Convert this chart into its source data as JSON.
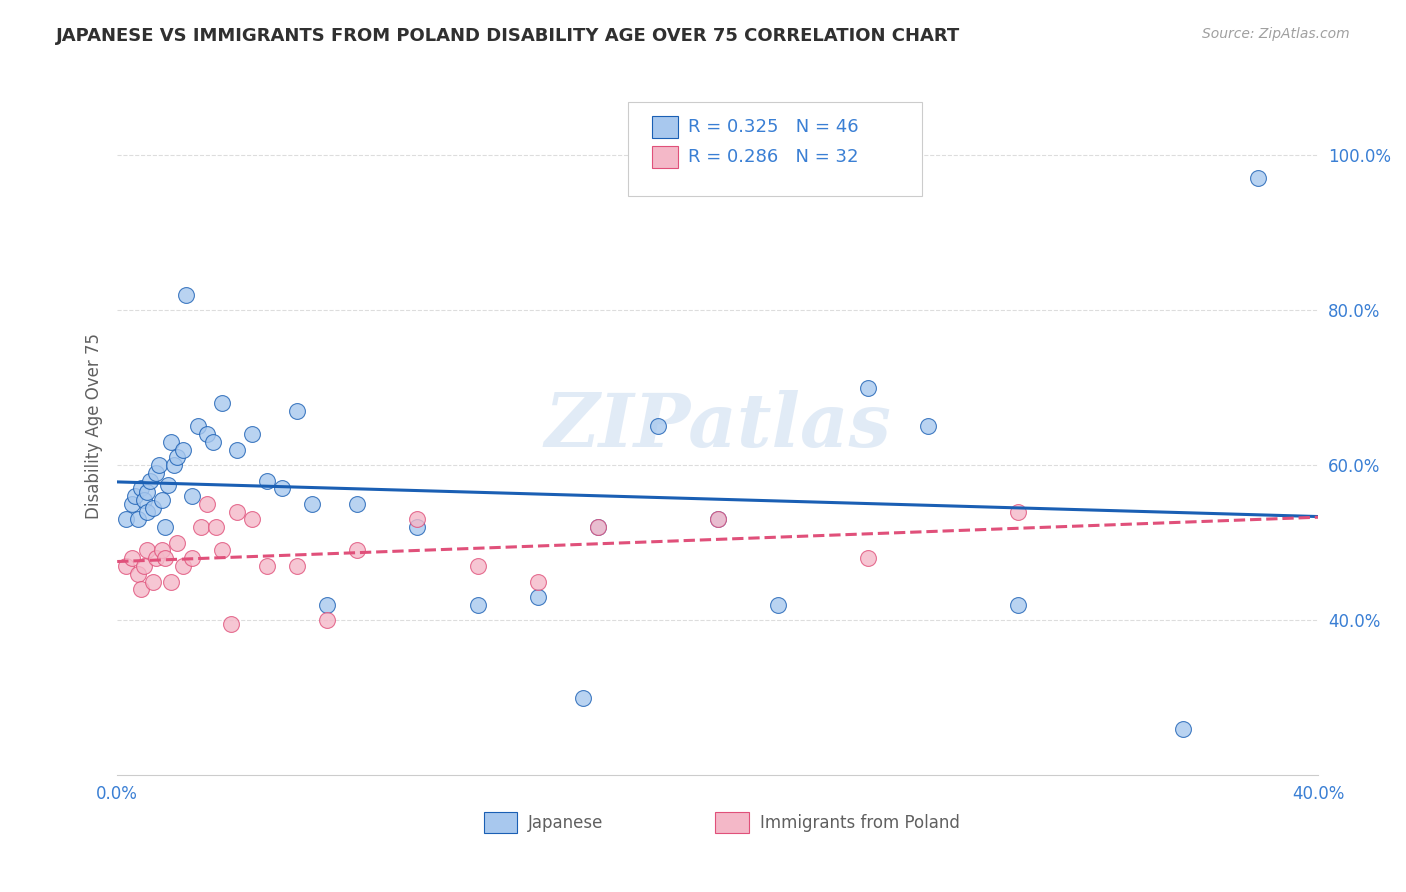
{
  "title": "JAPANESE VS IMMIGRANTS FROM POLAND DISABILITY AGE OVER 75 CORRELATION CHART",
  "source": "Source: ZipAtlas.com",
  "ylabel": "Disability Age Over 75",
  "watermark": "ZIPatlas",
  "legend": {
    "japanese": {
      "R": 0.325,
      "N": 46,
      "color": "#a8c8ee",
      "line_color": "#1a5fb4"
    },
    "poland": {
      "R": 0.286,
      "N": 32,
      "color": "#f4b8c8",
      "line_color": "#e0507a"
    }
  },
  "x_range": [
    0.0,
    0.4
  ],
  "y_range": [
    0.2,
    1.1
  ],
  "yticks": [
    0.4,
    0.6,
    0.8,
    1.0
  ],
  "ytick_labels": [
    "40.0%",
    "60.0%",
    "80.0%",
    "100.0%"
  ],
  "xticks": [
    0.0,
    0.1,
    0.2,
    0.3,
    0.4
  ],
  "xtick_labels": [
    "0.0%",
    "",
    "",
    "",
    "40.0%"
  ],
  "japanese_x": [
    0.003,
    0.005,
    0.006,
    0.007,
    0.008,
    0.009,
    0.01,
    0.01,
    0.011,
    0.012,
    0.013,
    0.014,
    0.015,
    0.016,
    0.017,
    0.018,
    0.019,
    0.02,
    0.022,
    0.023,
    0.025,
    0.027,
    0.03,
    0.032,
    0.035,
    0.04,
    0.045,
    0.05,
    0.055,
    0.06,
    0.065,
    0.07,
    0.08,
    0.1,
    0.12,
    0.14,
    0.155,
    0.16,
    0.18,
    0.2,
    0.22,
    0.25,
    0.27,
    0.3,
    0.355,
    0.38
  ],
  "japanese_y": [
    0.53,
    0.55,
    0.56,
    0.53,
    0.57,
    0.555,
    0.54,
    0.565,
    0.58,
    0.545,
    0.59,
    0.6,
    0.555,
    0.52,
    0.575,
    0.63,
    0.6,
    0.61,
    0.62,
    0.82,
    0.56,
    0.65,
    0.64,
    0.63,
    0.68,
    0.62,
    0.64,
    0.58,
    0.57,
    0.67,
    0.55,
    0.42,
    0.55,
    0.52,
    0.42,
    0.43,
    0.3,
    0.52,
    0.65,
    0.53,
    0.42,
    0.7,
    0.65,
    0.42,
    0.26,
    0.97
  ],
  "poland_x": [
    0.003,
    0.005,
    0.007,
    0.008,
    0.009,
    0.01,
    0.012,
    0.013,
    0.015,
    0.016,
    0.018,
    0.02,
    0.022,
    0.025,
    0.028,
    0.03,
    0.033,
    0.035,
    0.038,
    0.04,
    0.045,
    0.05,
    0.06,
    0.07,
    0.08,
    0.1,
    0.12,
    0.14,
    0.16,
    0.2,
    0.25,
    0.3
  ],
  "poland_y": [
    0.47,
    0.48,
    0.46,
    0.44,
    0.47,
    0.49,
    0.45,
    0.48,
    0.49,
    0.48,
    0.45,
    0.5,
    0.47,
    0.48,
    0.52,
    0.55,
    0.52,
    0.49,
    0.395,
    0.54,
    0.53,
    0.47,
    0.47,
    0.4,
    0.49,
    0.53,
    0.47,
    0.45,
    0.52,
    0.53,
    0.48,
    0.54
  ],
  "background_color": "#ffffff",
  "grid_color": "#dddddd",
  "title_color": "#303030",
  "axis_label_color": "#606060",
  "tick_label_color": "#3a7fd4",
  "source_color": "#a0a0a0"
}
